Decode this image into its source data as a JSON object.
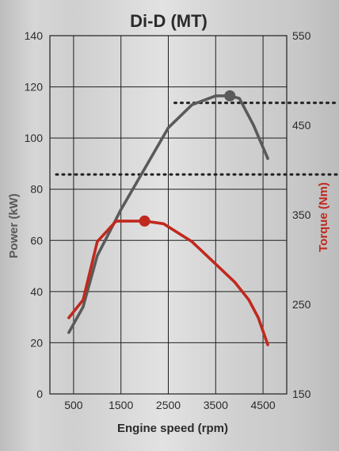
{
  "chart_data": {
    "type": "line",
    "title": "Di-D (MT)",
    "xlabel": "Engine speed (rpm)",
    "ylabel_left": "Power (kW)",
    "ylabel_right": "Torque (Nm)",
    "xlim": [
      0,
      5000
    ],
    "ylim_left": [
      0,
      140
    ],
    "ylim_right": [
      150,
      550
    ],
    "x_ticks": [
      500,
      1500,
      2500,
      3500,
      4500
    ],
    "y_ticks_left": [
      0,
      20,
      40,
      60,
      80,
      100,
      120,
      140
    ],
    "y_ticks_right": [
      150,
      250,
      350,
      450,
      550
    ],
    "grid": true,
    "colors": {
      "power": "#5a5a5a",
      "torque": "#c0291e"
    },
    "series": [
      {
        "name": "Power (kW)",
        "axis": "left",
        "x": [
          400,
          700,
          1000,
          1500,
          2000,
          2500,
          3000,
          3500,
          3800,
          4000,
          4300,
          4600
        ],
        "y": [
          24,
          34,
          54,
          72,
          88,
          104,
          113,
          116.5,
          116.5,
          115.5,
          105,
          92
        ]
      },
      {
        "name": "Torque (Nm)",
        "axis": "right",
        "x": [
          400,
          700,
          1000,
          1400,
          2000,
          2400,
          3000,
          3600,
          3900,
          4200,
          4400,
          4600
        ],
        "y": [
          235,
          255,
          320,
          343,
          343,
          340,
          320,
          290,
          275,
          255,
          235,
          205
        ]
      }
    ],
    "peaks": [
      {
        "series": "Torque (Nm)",
        "x": 2000,
        "y": 343
      },
      {
        "series": "Power (kW)",
        "x": 3800,
        "y": 116.5
      }
    ],
    "reference_lines": [
      {
        "axis": "right",
        "y": 395,
        "x_start": 0
      },
      {
        "axis": "right",
        "y": 475,
        "x_start": 2500
      }
    ]
  }
}
